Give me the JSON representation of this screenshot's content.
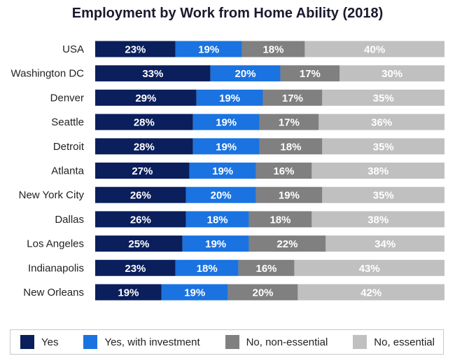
{
  "chart_data": {
    "type": "bar",
    "orientation": "horizontal",
    "stacked": true,
    "title": "Employment by Work from Home Ability (2018)",
    "categories": [
      "USA",
      "Washington DC",
      "Denver",
      "Seattle",
      "Detroit",
      "Atlanta",
      "New York City",
      "Dallas",
      "Los Angeles",
      "Indianapolis",
      "New Orleans"
    ],
    "series": [
      {
        "name": "Yes",
        "color": "#0b1f5c",
        "values": [
          23,
          33,
          29,
          28,
          28,
          27,
          26,
          26,
          25,
          23,
          19
        ]
      },
      {
        "name": "Yes, with investment",
        "color": "#1a73e0",
        "values": [
          19,
          20,
          19,
          19,
          19,
          19,
          20,
          18,
          19,
          18,
          19
        ]
      },
      {
        "name": "No, non-essential",
        "color": "#808080",
        "values": [
          18,
          17,
          17,
          17,
          18,
          16,
          19,
          18,
          22,
          16,
          20
        ]
      },
      {
        "name": "No, essential",
        "color": "#c0c0c0",
        "values": [
          40,
          30,
          35,
          36,
          35,
          38,
          35,
          38,
          34,
          43,
          42
        ]
      }
    ],
    "value_suffix": "%",
    "legend_position": "bottom"
  }
}
